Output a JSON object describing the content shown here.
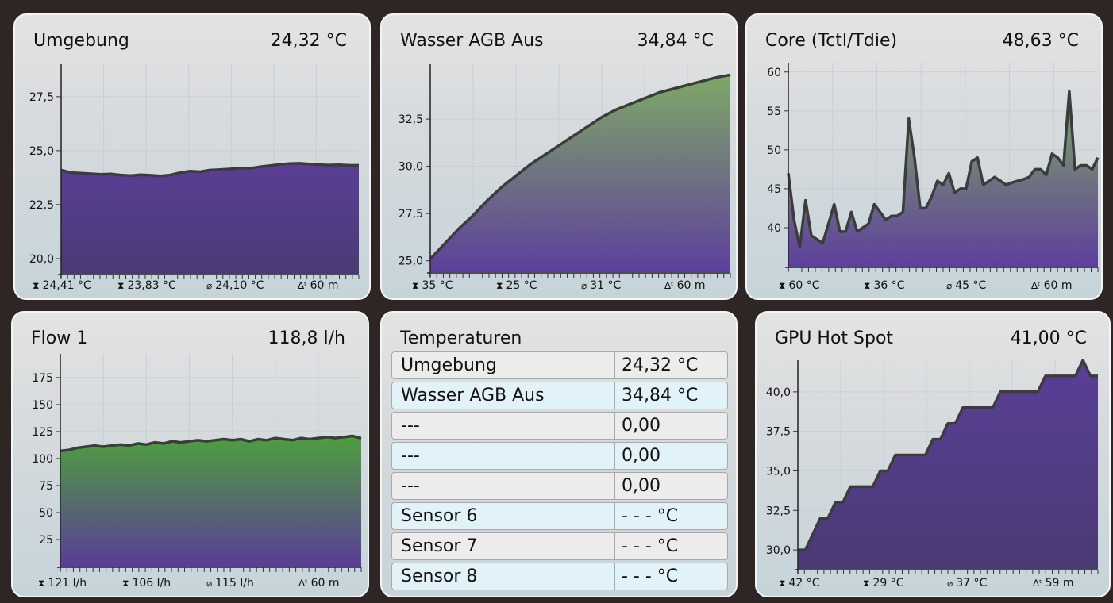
{
  "panels": [
    {
      "title": "Umgebung",
      "value": "24,32 °C",
      "stats": {
        "max": "24,41 °C",
        "min": "23,83 °C",
        "avg": "24,10 °C",
        "dt": "60 m"
      },
      "chart_data": {
        "type": "area",
        "ylim": [
          19.3,
          29.0
        ],
        "yticks": [
          "27,5",
          "25,0",
          "22,5",
          "20,0"
        ],
        "ytick_values": [
          27.5,
          25.0,
          22.5,
          20.0
        ],
        "values": [
          24.1,
          23.98,
          23.96,
          23.93,
          23.9,
          23.92,
          23.87,
          23.84,
          23.88,
          23.86,
          23.83,
          23.87,
          23.98,
          24.05,
          24.02,
          24.1,
          24.12,
          24.15,
          24.2,
          24.18,
          24.25,
          24.3,
          24.36,
          24.4,
          24.41,
          24.38,
          24.35,
          24.33,
          24.34,
          24.32,
          24.32
        ],
        "fill_top": "#5a3f96",
        "fill_bottom": "#4a3a74"
      }
    },
    {
      "title": "Wasser AGB Aus",
      "value": "34,84 °C",
      "stats": {
        "max": "35 °C",
        "min": "25 °C",
        "avg": "31 °C",
        "dt": "60 m"
      },
      "chart_data": {
        "type": "area",
        "ylim": [
          24.4,
          35.4
        ],
        "yticks": [
          "32,5",
          "30,0",
          "27,5",
          "25,0"
        ],
        "ytick_values": [
          32.5,
          30.0,
          27.5,
          25.0
        ],
        "values": [
          25.1,
          25.9,
          26.7,
          27.4,
          28.2,
          28.9,
          29.5,
          30.1,
          30.6,
          31.1,
          31.6,
          32.1,
          32.6,
          33.0,
          33.3,
          33.6,
          33.9,
          34.1,
          34.3,
          34.5,
          34.7,
          34.84
        ],
        "fill_top": "#7ea866",
        "fill_bottom": "#5e3f9c"
      }
    },
    {
      "title": "Core (Tctl/Tdie)",
      "value": "48,63 °C",
      "stats": {
        "max": "60 °C",
        "min": "36 °C",
        "avg": "45 °C",
        "dt": "60 m"
      },
      "chart_data": {
        "type": "area",
        "ylim": [
          35,
          61.2
        ],
        "yticks": [
          "60",
          "55",
          "50",
          "45",
          "40"
        ],
        "ytick_values": [
          60,
          55,
          50,
          45,
          40
        ],
        "values": [
          47,
          41,
          37.5,
          43.5,
          39,
          38.5,
          38,
          40.5,
          43,
          39.5,
          39.5,
          42,
          39.5,
          40,
          40.5,
          43,
          42,
          41,
          41.5,
          41.5,
          42,
          54,
          49,
          42.5,
          42.5,
          44,
          46,
          45.5,
          47,
          44.5,
          45,
          45,
          48.5,
          49,
          45.5,
          46,
          46.5,
          46,
          45.5,
          45.8,
          46,
          46.2,
          46.5,
          47.5,
          47.5,
          46.8,
          49.5,
          49,
          48,
          57.5,
          47.5,
          48,
          48,
          47.5,
          49
        ],
        "fill_top": "#7ea866",
        "fill_bottom": "#5e3f9c"
      }
    },
    {
      "title": "Flow 1",
      "value": "118,8 l/h",
      "stats": {
        "max": "121 l/h",
        "min": "106 l/h",
        "avg": "115 l/h",
        "dt": "60 m"
      },
      "chart_data": {
        "type": "area",
        "ylim": [
          0,
          197
        ],
        "yticks": [
          "175",
          "150",
          "125",
          "100",
          "75",
          "50",
          "25"
        ],
        "ytick_values": [
          175,
          150,
          125,
          100,
          75,
          50,
          25
        ],
        "values": [
          107,
          108,
          110,
          111,
          112,
          111,
          112,
          113,
          112,
          114,
          113,
          115,
          114,
          116,
          115,
          116,
          117,
          116,
          117,
          118,
          117,
          118,
          116,
          118,
          117,
          119,
          118,
          117,
          119,
          118,
          119,
          120,
          119,
          120,
          121,
          118.8
        ],
        "fill_top": "#4e9f3f",
        "fill_bottom": "#5a3d96"
      }
    },
    {
      "title": "GPU Hot Spot",
      "value": "41,00 °C",
      "stats": {
        "max": "42 °C",
        "min": "29 °C",
        "avg": "37 °C",
        "dt": "59 m"
      },
      "chart_data": {
        "type": "area",
        "ylim": [
          28.8,
          42.0
        ],
        "yticks": [
          "40,0",
          "37,5",
          "35,0",
          "32,5",
          "30,0"
        ],
        "ytick_values": [
          40.0,
          37.5,
          35.0,
          32.5,
          30.0
        ],
        "values": [
          30,
          30,
          31,
          32,
          32,
          33,
          33,
          34,
          34,
          34,
          34,
          35,
          35,
          36,
          36,
          36,
          36,
          36,
          37,
          37,
          38,
          38,
          39,
          39,
          39,
          39,
          39,
          40,
          40,
          40,
          40,
          40,
          40,
          41,
          41,
          41,
          41,
          41,
          42,
          41,
          41
        ],
        "fill_top": "#5a3f96",
        "fill_bottom": "#4a3a74"
      }
    }
  ],
  "table": {
    "title": "Temperaturen",
    "rows": [
      {
        "name": "Umgebung",
        "value": "24,32 °C"
      },
      {
        "name": "Wasser AGB Aus",
        "value": "34,84 °C"
      },
      {
        "name": "---",
        "value": "0,00"
      },
      {
        "name": "---",
        "value": "0,00"
      },
      {
        "name": "---",
        "value": "0,00"
      },
      {
        "name": "Sensor 6",
        "value": "- - - °C"
      },
      {
        "name": "Sensor 7",
        "value": "- - - °C"
      },
      {
        "name": "Sensor 8",
        "value": "- - - °C"
      }
    ]
  },
  "icons": {
    "max": "max-icon",
    "min": "min-icon",
    "avg": "average-icon",
    "dt": "delta-time-icon"
  },
  "colors": {
    "background": "#2e2624",
    "line": "#3c3c3c",
    "panel_border": "#f4f4f4"
  }
}
